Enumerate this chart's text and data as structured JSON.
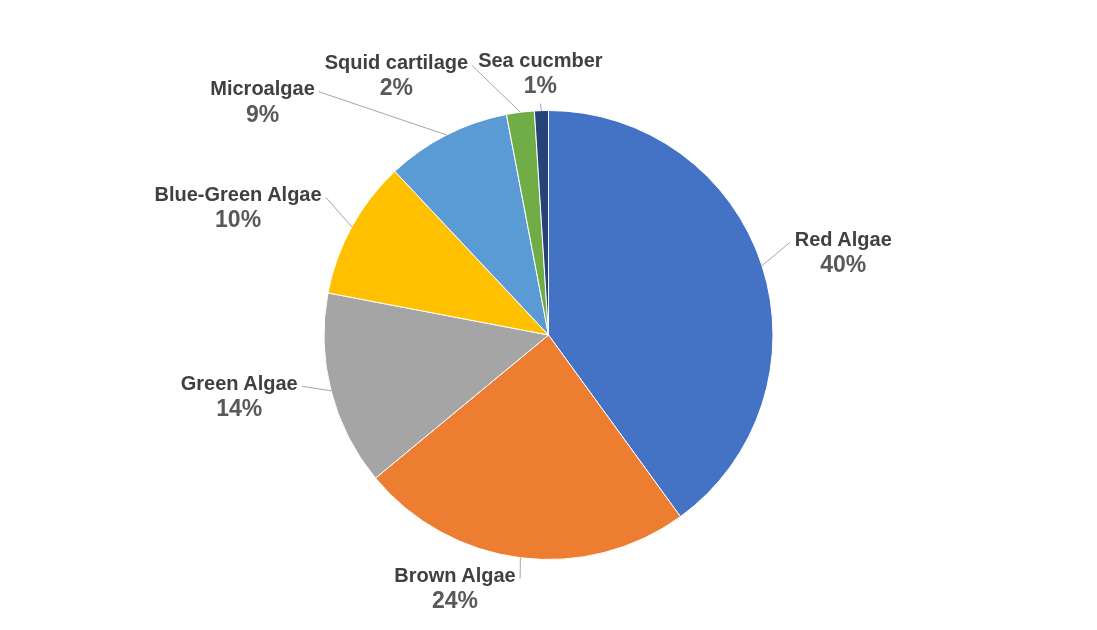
{
  "chart_data": {
    "type": "pie",
    "categories": [
      "Red Algae",
      "Brown Algae",
      "Green Algae",
      "Blue-Green Algae",
      "Microalgae",
      "Squid cartilage",
      "Sea cucmber"
    ],
    "values": [
      40,
      24,
      14,
      10,
      9,
      2,
      1
    ],
    "colors": [
      "#4472c4",
      "#ed7d31",
      "#a5a5a5",
      "#ffc000",
      "#5b9bd5",
      "#70ad47",
      "#264478"
    ],
    "value_labels": [
      "40%",
      "24%",
      "14%",
      "10%",
      "9%",
      "2%",
      "1%"
    ]
  }
}
